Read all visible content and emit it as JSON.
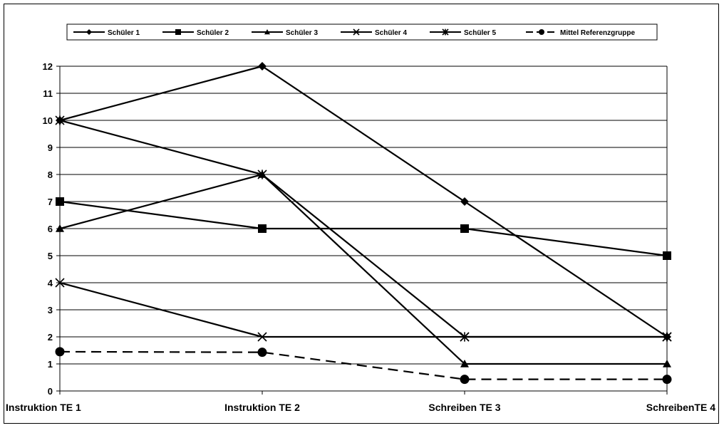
{
  "chart_data": {
    "type": "line",
    "categories": [
      "Instruktion TE 1",
      "Instruktion TE 2",
      "Schreiben TE 3",
      "SchreibenTE 4"
    ],
    "ylim": [
      0,
      12
    ],
    "yticks": [
      0,
      1,
      2,
      3,
      4,
      5,
      6,
      7,
      8,
      9,
      10,
      11,
      12
    ],
    "grid": "horizontal",
    "legend_position": "top",
    "series": [
      {
        "name": "Schüler 1",
        "marker": "diamond",
        "dashed": false,
        "values": [
          10,
          12,
          7,
          2
        ]
      },
      {
        "name": "Schüler 2",
        "marker": "square",
        "dashed": false,
        "values": [
          7,
          6,
          6,
          5
        ]
      },
      {
        "name": "Schüler 3",
        "marker": "triangle",
        "dashed": false,
        "values": [
          6,
          8,
          1,
          1
        ]
      },
      {
        "name": "Schüler 4",
        "marker": "x",
        "dashed": false,
        "values": [
          4,
          2,
          2,
          2
        ]
      },
      {
        "name": "Schüler 5",
        "marker": "asterisk",
        "dashed": false,
        "values": [
          10,
          8,
          2,
          2
        ]
      },
      {
        "name": "Mittel Referenzgruppe",
        "marker": "circle",
        "dashed": true,
        "values": [
          1.45,
          1.43,
          0.43,
          0.43
        ]
      }
    ],
    "colors": {
      "line": "#000000",
      "grid": "#000000",
      "background": "#ffffff"
    }
  }
}
